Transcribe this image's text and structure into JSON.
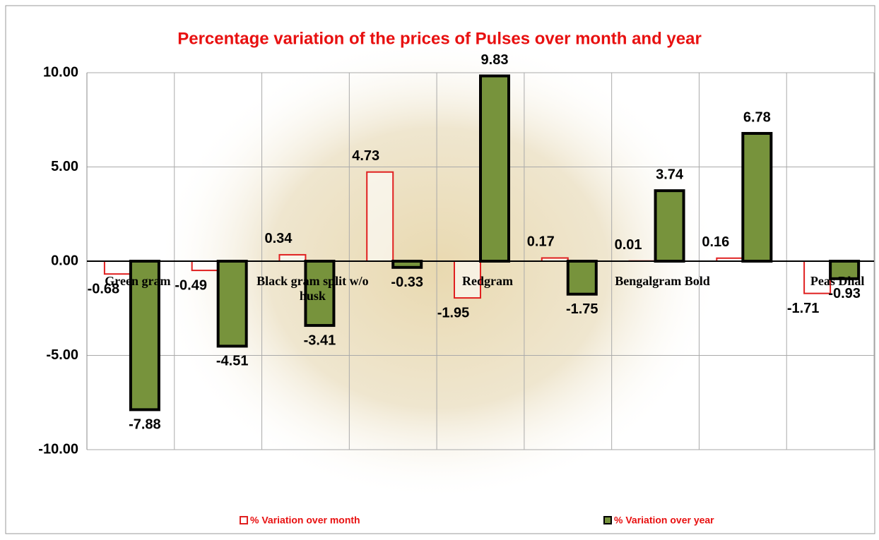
{
  "chart_data": {
    "type": "bar",
    "title": "Percentage variation of the prices of Pulses over month and year",
    "categories": [
      "Green gram",
      null,
      "Black gram split w/o husk",
      null,
      "Redgram",
      null,
      "Bengalgram Bold",
      null,
      "Peas Dhal"
    ],
    "series": [
      {
        "name": "% Variation over month",
        "color": "#ffffff",
        "edge": "#e02020",
        "values": [
          -0.68,
          -0.49,
          0.34,
          4.73,
          -1.95,
          0.17,
          0.01,
          0.16,
          -1.71
        ]
      },
      {
        "name": "% Variation over year",
        "color": "#77933c",
        "edge": "#000000",
        "values": [
          -7.88,
          -4.51,
          -3.41,
          -0.33,
          9.83,
          -1.75,
          3.74,
          6.78,
          -0.93
        ]
      }
    ],
    "ylim": [
      -10,
      10
    ],
    "yticks": [
      {
        "value": -10,
        "label": "-10.00"
      },
      {
        "value": -5,
        "label": "-5.00"
      },
      {
        "value": 0,
        "label": "0.00"
      },
      {
        "value": 5,
        "label": "5.00"
      },
      {
        "value": 10,
        "label": "10.00"
      }
    ],
    "grid": true,
    "legend": "bottom"
  }
}
